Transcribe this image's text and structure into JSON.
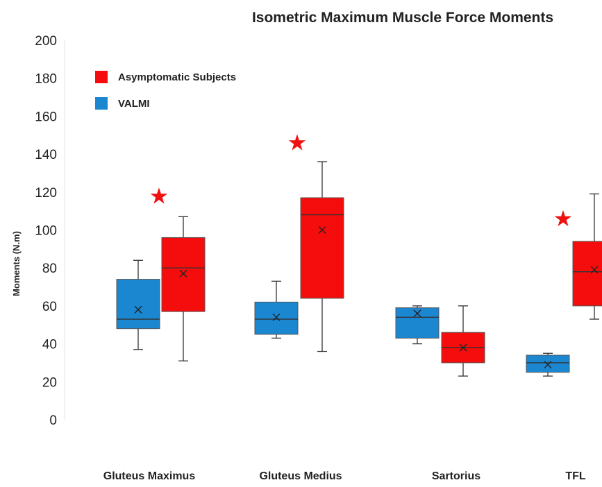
{
  "chart_data": {
    "type": "boxplot",
    "title": "Isometric Maximum Muscle Force Moments",
    "ylabel": "Moments (N.m)",
    "xlabel": "",
    "ylim": [
      0,
      200
    ],
    "yticks": [
      0,
      20,
      40,
      60,
      80,
      100,
      120,
      140,
      160,
      180,
      200
    ],
    "grid": false,
    "legend_position": "top-left",
    "categories": [
      "Gluteus Maximus",
      "Gluteus Medius",
      "Sartorius",
      "TFL"
    ],
    "series": [
      {
        "name": "VALMI",
        "color": "#1b87d1",
        "boxes": [
          {
            "min": 37,
            "q1": 48,
            "median": 53,
            "q3": 74,
            "max": 84,
            "mean": 58
          },
          {
            "min": 43,
            "q1": 45,
            "median": 53,
            "q3": 62,
            "max": 73,
            "mean": 54
          },
          {
            "min": 40,
            "q1": 43,
            "median": 54,
            "q3": 59,
            "max": 60,
            "mean": 56
          },
          {
            "min": 23,
            "q1": 25,
            "median": 30,
            "q3": 34,
            "max": 35,
            "mean": 29
          }
        ]
      },
      {
        "name": "Asymptomatic Subjects",
        "color": "#f50d0d",
        "boxes": [
          {
            "min": 31,
            "q1": 57,
            "median": 80,
            "q3": 96,
            "max": 107,
            "mean": 77
          },
          {
            "min": 36,
            "q1": 64,
            "median": 108,
            "q3": 117,
            "max": 136,
            "mean": 100
          },
          {
            "min": 23,
            "q1": 30,
            "median": 38,
            "q3": 46,
            "max": 60,
            "mean": 38
          },
          {
            "min": 53,
            "q1": 60,
            "median": 78,
            "q3": 94,
            "max": 119,
            "mean": 79
          }
        ]
      }
    ],
    "significance_markers": [
      {
        "category": "Gluteus Maximus",
        "symbol": "★",
        "y": 118
      },
      {
        "category": "Gluteus Medius",
        "symbol": "★",
        "y": 146
      },
      {
        "category": "TFL",
        "symbol": "★",
        "y": 106
      }
    ],
    "legend_order": [
      "Asymptomatic Subjects",
      "VALMI"
    ]
  }
}
